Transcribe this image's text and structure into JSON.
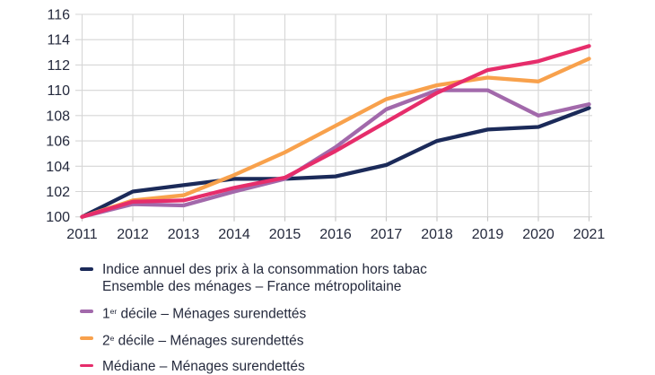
{
  "chart_data": {
    "type": "line",
    "x": [
      2011,
      2012,
      2013,
      2014,
      2015,
      2016,
      2017,
      2018,
      2019,
      2020,
      2021
    ],
    "x_labels": [
      "2011",
      "2012",
      "2013",
      "2014",
      "2015",
      "2016",
      "2017",
      "2018",
      "2019",
      "2020",
      "2021"
    ],
    "ylim": [
      100,
      116
    ],
    "y_ticks": [
      100,
      102,
      104,
      106,
      108,
      110,
      112,
      114,
      116
    ],
    "grid": "horizontal-and-vertical",
    "grid_color": "#d6d6d6",
    "axis_tick_color": "#c9c9c9",
    "legend_position": "bottom-left",
    "series": [
      {
        "key": "ipc",
        "name": "Indice annuel des prix à la consommation hors tabac — Ensemble des ménages – France métropolitaine",
        "color": "#1b2a59",
        "values": [
          100,
          102.0,
          102.5,
          103.0,
          103.0,
          103.2,
          104.1,
          106.0,
          106.9,
          107.1,
          108.6
        ]
      },
      {
        "key": "d1",
        "name": "1er décile – Ménages surendettés",
        "color": "#a269ab",
        "values": [
          100,
          101.0,
          100.9,
          102.0,
          103.0,
          105.5,
          108.5,
          110.0,
          110.0,
          108.0,
          108.9
        ]
      },
      {
        "key": "d2",
        "name": "2e décile – Ménages surendettés",
        "color": "#f8a14c",
        "values": [
          100,
          101.3,
          101.7,
          103.3,
          105.1,
          107.2,
          109.3,
          110.4,
          111.0,
          110.7,
          112.5
        ]
      },
      {
        "key": "mediane",
        "name": "Médiane – Ménages surendettés",
        "color": "#e62d6b",
        "values": [
          100,
          101.2,
          101.3,
          102.3,
          103.1,
          105.2,
          107.5,
          109.8,
          111.6,
          112.3,
          113.5
        ]
      }
    ]
  },
  "legend": {
    "entries": [
      {
        "line1": "Indice annuel des prix à la consommation hors tabac",
        "line2": "Ensemble des ménages – France métropolitaine"
      },
      {
        "num": "1",
        "sup": "er",
        "rest": " décile – Ménages surendettés"
      },
      {
        "num": "2",
        "sup": "e",
        "rest": " décile – Ménages surendettés"
      },
      {
        "label": "Médiane – Ménages surendettés"
      }
    ]
  }
}
